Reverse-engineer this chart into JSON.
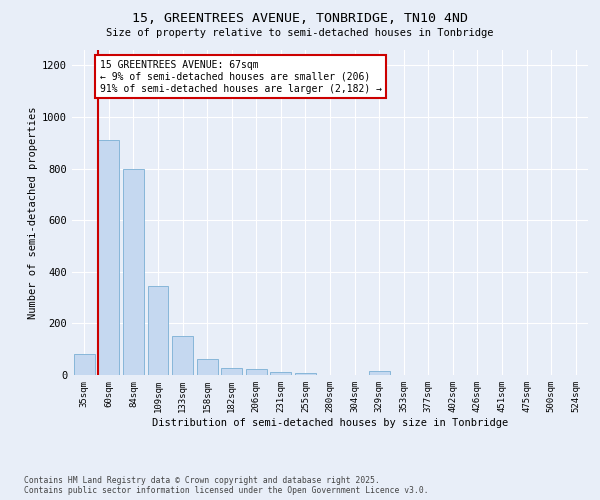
{
  "title1": "15, GREENTREES AVENUE, TONBRIDGE, TN10 4ND",
  "title2": "Size of property relative to semi-detached houses in Tonbridge",
  "xlabel": "Distribution of semi-detached houses by size in Tonbridge",
  "ylabel": "Number of semi-detached properties",
  "categories": [
    "35sqm",
    "60sqm",
    "84sqm",
    "109sqm",
    "133sqm",
    "158sqm",
    "182sqm",
    "206sqm",
    "231sqm",
    "255sqm",
    "280sqm",
    "304sqm",
    "329sqm",
    "353sqm",
    "377sqm",
    "402sqm",
    "426sqm",
    "451sqm",
    "475sqm",
    "500sqm",
    "524sqm"
  ],
  "values": [
    80,
    910,
    800,
    345,
    150,
    62,
    28,
    25,
    10,
    8,
    0,
    0,
    14,
    0,
    0,
    0,
    0,
    0,
    0,
    0,
    0
  ],
  "bar_color": "#c5d8f0",
  "bar_edge_color": "#7aafd4",
  "vline_color": "#cc0000",
  "annotation_title": "15 GREENTREES AVENUE: 67sqm",
  "annotation_line1": "← 9% of semi-detached houses are smaller (206)",
  "annotation_line2": "91% of semi-detached houses are larger (2,182) →",
  "annotation_box_color": "#cc0000",
  "ylim": [
    0,
    1260
  ],
  "yticks": [
    0,
    200,
    400,
    600,
    800,
    1000,
    1200
  ],
  "footer1": "Contains HM Land Registry data © Crown copyright and database right 2025.",
  "footer2": "Contains public sector information licensed under the Open Government Licence v3.0.",
  "bg_color": "#e8eef8",
  "plot_bg_color": "#e8eef8"
}
